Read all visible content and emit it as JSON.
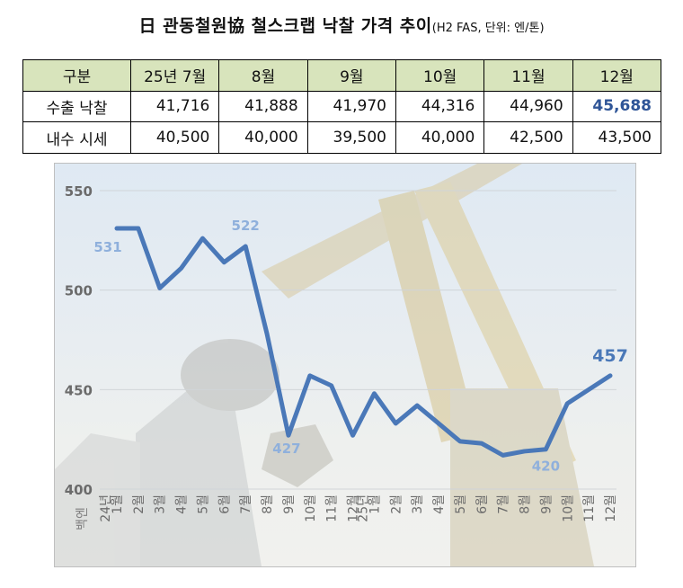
{
  "header": {
    "title": "日 관동철원協 철스크랩 낙찰 가격 추이",
    "subtitle": "(H2 FAS, 단위: 엔/톤)"
  },
  "table": {
    "corner": "구분",
    "columns": [
      "25년 7월",
      "8월",
      "9월",
      "10월",
      "11월",
      "12월"
    ],
    "rows": [
      {
        "label": "수출 낙찰",
        "values": [
          "41,716",
          "41,888",
          "41,970",
          "44,316",
          "44,960",
          "45,688"
        ]
      },
      {
        "label": "내수 시세",
        "values": [
          "40,500",
          "40,000",
          "39,500",
          "40,000",
          "42,500",
          "43,500"
        ]
      }
    ],
    "highlight_color": "#2f5597"
  },
  "chart_data": {
    "type": "line",
    "ylabel": "백엔",
    "ylim": [
      400,
      550
    ],
    "yticks": [
      400,
      450,
      500,
      550
    ],
    "grid": true,
    "x": [
      "1월",
      "2월",
      "3월",
      "4월",
      "5월",
      "6월",
      "7월",
      "8월",
      "9월",
      "10월",
      "11월",
      "12월",
      "1월",
      "2월",
      "3월",
      "4월",
      "5월",
      "6월",
      "7월",
      "8월",
      "9월",
      "10월",
      "11월",
      "12월"
    ],
    "year_labels": [
      {
        "text": "24년",
        "index": 0
      },
      {
        "text": "25년",
        "index": 12
      }
    ],
    "series": [
      {
        "values": [
          531,
          531,
          501,
          511,
          526,
          514,
          522,
          478,
          427,
          457,
          452,
          427,
          448,
          433,
          442,
          433,
          424,
          423,
          417,
          419,
          420,
          443,
          450,
          457
        ],
        "color": "#4a78b8"
      }
    ],
    "annotations": [
      {
        "index": 0,
        "text": "531"
      },
      {
        "index": 6,
        "text": "522"
      },
      {
        "index": 8,
        "text": "427"
      },
      {
        "index": 20,
        "text": "420"
      },
      {
        "index": 23,
        "text": "457"
      }
    ]
  }
}
